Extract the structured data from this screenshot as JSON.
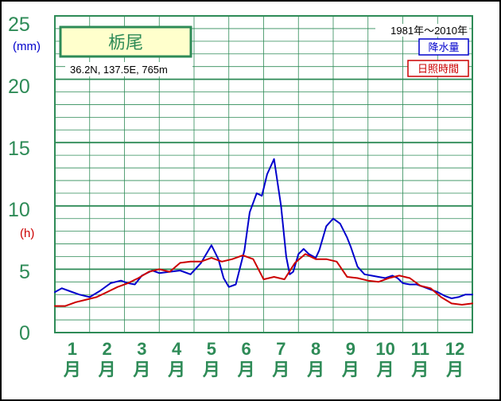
{
  "chart_data": {
    "type": "line",
    "title": "栃尾",
    "location": "36.2N,  137.5E,  765m",
    "period": "1981年〜2010年",
    "y_unit_top": "(mm)",
    "y_unit_bottom": "(h)",
    "ylim": [
      0,
      25
    ],
    "yticks": [
      "0",
      "5",
      "10",
      "15",
      "20",
      "25"
    ],
    "months": [
      "1",
      "2",
      "3",
      "4",
      "5",
      "6",
      "7",
      "8",
      "9",
      "10",
      "11",
      "12"
    ],
    "month_suffix": "月",
    "grid": true,
    "legend_position": "top-right",
    "x_domain": [
      0,
      12
    ],
    "series": [
      {
        "name": "降水量",
        "color": "#0000cc",
        "x": [
          0.0,
          0.2,
          0.4,
          0.7,
          1.0,
          1.3,
          1.6,
          1.9,
          2.1,
          2.3,
          2.5,
          2.8,
          3.0,
          3.3,
          3.6,
          3.9,
          4.2,
          4.5,
          4.7,
          4.85,
          5.0,
          5.2,
          5.45,
          5.6,
          5.8,
          5.95,
          6.1,
          6.3,
          6.5,
          6.65,
          6.75,
          6.85,
          7.0,
          7.15,
          7.3,
          7.5,
          7.6,
          7.8,
          8.0,
          8.2,
          8.4,
          8.5,
          8.7,
          8.9,
          9.1,
          9.3,
          9.5,
          9.7,
          9.85,
          10.0,
          10.2,
          10.4,
          10.6,
          10.8,
          11.0,
          11.2,
          11.4,
          11.6,
          11.8,
          12.0
        ],
        "y": [
          3.2,
          3.5,
          3.3,
          3.0,
          2.8,
          3.3,
          3.9,
          4.1,
          3.9,
          3.8,
          4.5,
          4.9,
          4.7,
          4.8,
          4.9,
          4.6,
          5.5,
          6.9,
          5.8,
          4.3,
          3.6,
          3.8,
          6.5,
          9.5,
          11.0,
          10.8,
          12.5,
          13.7,
          10.0,
          6.0,
          4.6,
          4.8,
          6.2,
          6.6,
          6.2,
          5.9,
          6.5,
          8.4,
          9.0,
          8.6,
          7.5,
          6.8,
          5.2,
          4.6,
          4.5,
          4.4,
          4.3,
          4.5,
          4.3,
          3.9,
          3.8,
          3.8,
          3.6,
          3.4,
          3.2,
          2.9,
          2.7,
          2.8,
          3.0,
          3.0
        ]
      },
      {
        "name": "日照時間",
        "color": "#cc0000",
        "x": [
          0.0,
          0.3,
          0.6,
          0.9,
          1.2,
          1.5,
          1.8,
          2.1,
          2.4,
          2.7,
          3.0,
          3.3,
          3.6,
          3.9,
          4.2,
          4.5,
          4.8,
          5.1,
          5.4,
          5.7,
          6.0,
          6.3,
          6.6,
          6.9,
          7.2,
          7.5,
          7.8,
          8.1,
          8.4,
          8.7,
          9.0,
          9.3,
          9.6,
          9.9,
          10.2,
          10.5,
          10.8,
          11.1,
          11.4,
          11.7,
          12.0
        ],
        "y": [
          2.1,
          2.1,
          2.4,
          2.6,
          2.8,
          3.2,
          3.6,
          3.9,
          4.3,
          4.8,
          5.0,
          4.8,
          5.5,
          5.6,
          5.6,
          5.9,
          5.6,
          5.8,
          6.1,
          5.8,
          4.2,
          4.4,
          4.2,
          5.5,
          6.2,
          5.8,
          5.8,
          5.6,
          4.4,
          4.3,
          4.1,
          4.0,
          4.3,
          4.5,
          4.3,
          3.7,
          3.5,
          2.8,
          2.3,
          2.2,
          2.3
        ]
      }
    ]
  }
}
